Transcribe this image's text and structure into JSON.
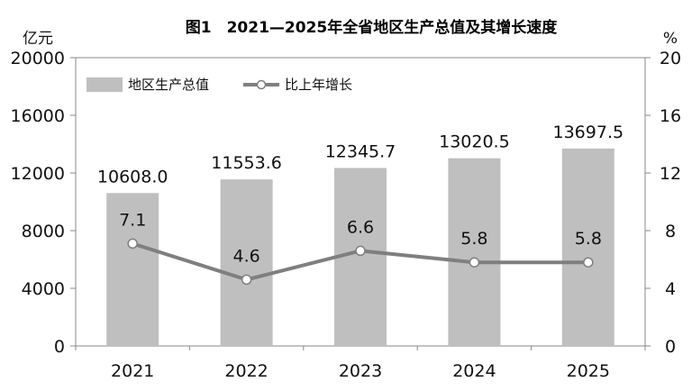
{
  "chart_data": {
    "type": "bar",
    "title": "图1　2021—2025年全省地区生产总值及其增长速度",
    "categories": [
      "2021",
      "2022",
      "2023",
      "2024",
      "2025"
    ],
    "series": [
      {
        "name": "地区生产总值",
        "type": "bar",
        "axis": "left",
        "values": [
          10608.0,
          11553.6,
          12345.7,
          13020.5,
          13697.5
        ],
        "labels": [
          "10608.0",
          "11553.6",
          "12345.7",
          "13020.5",
          "13697.5"
        ],
        "color": "#bfbfbf"
      },
      {
        "name": "比上年增长",
        "type": "line",
        "axis": "right",
        "values": [
          7.1,
          4.6,
          6.6,
          5.8,
          5.8
        ],
        "labels": [
          "7.1",
          "4.6",
          "6.6",
          "5.8",
          "5.8"
        ],
        "color": "#7f7f7f"
      }
    ],
    "y_left": {
      "unit": "亿元",
      "range": [
        0,
        20000
      ],
      "ticks": [
        "0",
        "4000",
        "8000",
        "12000",
        "16000",
        "20000"
      ]
    },
    "y_right": {
      "unit": "%",
      "range": [
        0,
        20
      ],
      "ticks": [
        "0",
        "4",
        "8",
        "12",
        "16",
        "20"
      ]
    },
    "grid": false,
    "legend": "top-left"
  }
}
